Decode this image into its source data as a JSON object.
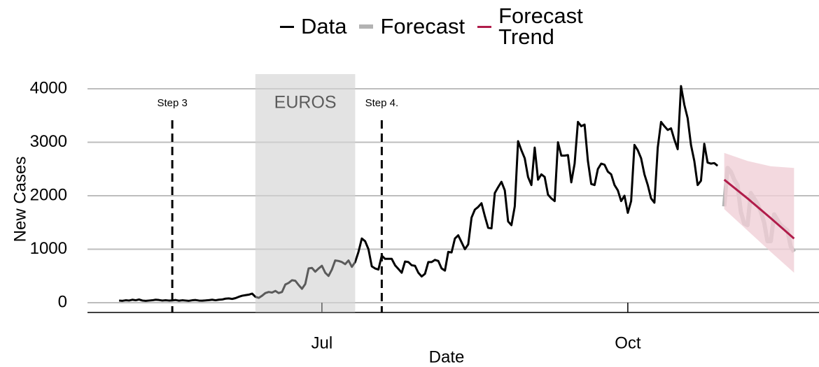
{
  "chart_data": {
    "type": "line",
    "x_label": "Date",
    "y_label": "New Cases",
    "xlim": [
      -9.5,
      210.5
    ],
    "xticks": [
      {
        "value": 61,
        "label": "Jul"
      },
      {
        "value": 153,
        "label": "Oct"
      }
    ],
    "ylim": [
      -183,
      4405
    ],
    "yticks": [
      0,
      1000,
      2000,
      3000,
      4000
    ],
    "grid": true,
    "legend": "top",
    "shaded": {
      "x": [
        41,
        71
      ],
      "label": "EUROS",
      "color": "#e3e3e3"
    },
    "vlines": [
      {
        "x": 16,
        "label": "Step 3"
      },
      {
        "x": 79,
        "label": "Step 4."
      }
    ],
    "series": [
      {
        "name": "Data",
        "color": "#000000",
        "line_width": 3,
        "x": [
          0,
          1,
          2,
          3,
          4,
          5,
          6,
          7,
          8,
          9,
          10,
          11,
          12,
          13,
          14,
          15,
          16,
          17,
          18,
          19,
          20,
          21,
          22,
          23,
          24,
          25,
          26,
          27,
          28,
          29,
          30,
          31,
          32,
          33,
          34,
          35,
          36,
          37,
          38,
          39,
          40,
          41,
          42,
          43,
          44,
          45,
          46,
          47,
          48,
          49,
          50,
          51,
          52,
          53,
          54,
          55,
          56,
          57,
          58,
          59,
          60,
          61,
          62,
          63,
          64,
          65,
          66,
          67,
          68,
          69,
          70,
          71,
          72,
          73,
          74,
          75,
          76,
          77,
          78,
          79,
          80,
          81,
          82,
          83,
          84,
          85,
          86,
          87,
          88,
          89,
          90,
          91,
          92,
          93,
          94,
          95,
          96,
          97,
          98,
          99,
          100,
          101,
          102,
          103,
          104,
          105,
          106,
          107,
          108,
          109,
          110,
          111,
          112,
          113,
          114,
          115,
          116,
          117,
          118,
          119,
          120,
          121,
          122,
          123,
          124,
          125,
          126,
          127,
          128,
          129,
          130,
          131,
          132,
          133,
          134,
          135,
          136,
          137,
          138,
          139,
          140,
          141,
          142,
          143,
          144,
          145,
          146,
          147,
          148,
          149,
          150,
          151,
          152,
          153,
          154,
          155,
          156,
          157,
          158,
          159,
          160,
          161,
          162,
          163,
          164,
          165,
          166,
          167,
          168,
          169,
          170,
          171,
          172,
          173,
          174,
          175,
          176,
          177,
          178,
          179,
          180
        ],
        "values": [
          40,
          35,
          45,
          40,
          55,
          45,
          60,
          40,
          35,
          40,
          45,
          55,
          50,
          40,
          45,
          40,
          42,
          50,
          38,
          45,
          40,
          35,
          45,
          50,
          40,
          38,
          42,
          48,
          55,
          45,
          55,
          60,
          75,
          80,
          70,
          85,
          110,
          130,
          140,
          150,
          170,
          110,
          90,
          130,
          180,
          200,
          190,
          220,
          180,
          200,
          340,
          370,
          420,
          410,
          330,
          260,
          350,
          640,
          650,
          580,
          640,
          690,
          560,
          500,
          620,
          790,
          780,
          760,
          720,
          790,
          670,
          760,
          950,
          1200,
          1150,
          1000,
          680,
          640,
          620,
          880,
          820,
          820,
          820,
          700,
          630,
          560,
          770,
          760,
          700,
          690,
          560,
          490,
          540,
          760,
          760,
          800,
          780,
          640,
          600,
          950,
          940,
          1200,
          1260,
          1130,
          1000,
          1090,
          1590,
          1740,
          1790,
          1860,
          1620,
          1400,
          1390,
          2050,
          2160,
          2260,
          2100,
          1520,
          1450,
          1800,
          3020,
          2850,
          2700,
          2350,
          2200,
          2900,
          2300,
          2400,
          2350,
          2020,
          1950,
          1900,
          3000,
          2750,
          2750,
          2760,
          2250,
          2600,
          3380,
          3300,
          3330,
          2650,
          2220,
          2200,
          2500,
          2600,
          2580,
          2450,
          2400,
          2200,
          2100,
          1900,
          2000,
          1680,
          1900,
          2950,
          2850,
          2700,
          2400,
          2200,
          1950,
          1870,
          2900,
          3380,
          3300,
          3230,
          3260,
          3050,
          2870,
          4050,
          3700,
          3450,
          2950,
          2650,
          2200,
          2280,
          2970,
          2620,
          2600,
          2610,
          2560
        ]
      },
      {
        "name": "Forecast",
        "color": "#b3b3b3",
        "line_width": 6,
        "x": [
          182,
          183,
          184,
          185,
          186,
          187,
          188,
          189,
          190,
          191,
          192,
          193,
          194,
          195,
          196,
          197,
          198,
          199,
          200,
          201,
          202,
          203
        ],
        "values": [
          1800,
          2520,
          2450,
          2300,
          2200,
          1700,
          1480,
          1450,
          2050,
          1950,
          1850,
          1700,
          1500,
          1150,
          1150,
          1650,
          1550,
          1450,
          1400,
          1350,
          1050,
          950
        ]
      },
      {
        "name": "Forecast Trend",
        "color": "#b01c4a",
        "line_width": 3,
        "band_color": "#f0d0d7",
        "x": [
          182,
          189,
          196,
          203
        ],
        "values": [
          2300,
          1950,
          1580,
          1200
        ],
        "lower": [
          1750,
          1350,
          950,
          560
        ],
        "upper": [
          2800,
          2650,
          2550,
          2520
        ]
      }
    ]
  }
}
